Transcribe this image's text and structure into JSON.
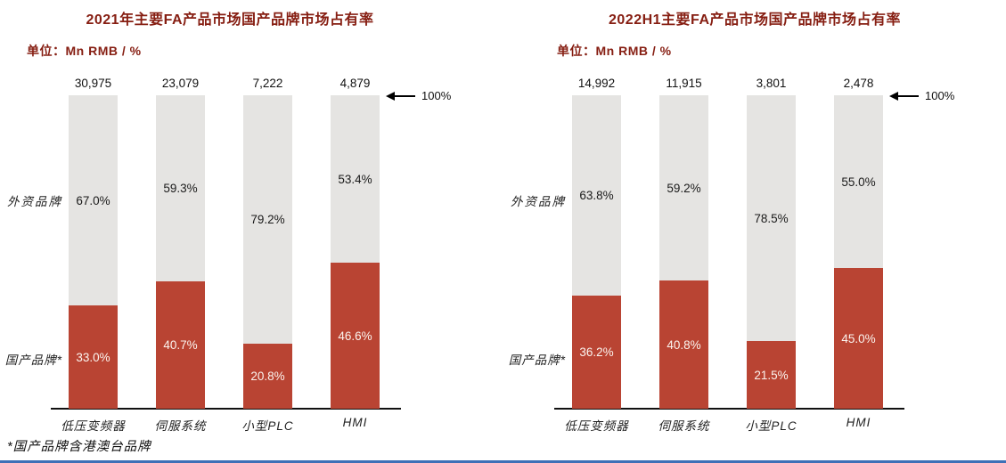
{
  "page": {
    "footnote": "*国产品牌含港澳台品牌"
  },
  "colors": {
    "domestic_bar": "#B94433",
    "foreign_bar": "#E5E4E2",
    "heading": "#861E12",
    "text_dark": "#1A1A1A",
    "text_on_red": "#FBF4EF",
    "bottom_rule": "#3E70B7"
  },
  "chart_data": [
    {
      "type": "bar",
      "subtype": "100%-stacked-column",
      "title": "2021年主要FA产品市场国产品牌市场占有率",
      "unit_label": "单位：Mn RMB / %",
      "axis_marker": "100%",
      "ylim": [
        0,
        100
      ],
      "legend_position": "left-of-plot",
      "categories": [
        "低压变频器",
        "伺服系统",
        "小型PLC",
        "HMI"
      ],
      "totals_mn_rmb": [
        "30,975",
        "23,079",
        "7,222",
        "4,879"
      ],
      "series": [
        {
          "name": "外资品牌",
          "values": [
            67.0,
            59.3,
            79.2,
            53.4
          ],
          "labels": [
            "67.0%",
            "59.3%",
            "79.2%",
            "53.4%"
          ]
        },
        {
          "name": "国产品牌*",
          "values": [
            33.0,
            40.7,
            20.8,
            46.6
          ],
          "labels": [
            "33.0%",
            "40.7%",
            "20.8%",
            "46.6%"
          ]
        }
      ]
    },
    {
      "type": "bar",
      "subtype": "100%-stacked-column",
      "title": "2022H1主要FA产品市场国产品牌市场占有率",
      "unit_label": "单位：Mn RMB / %",
      "axis_marker": "100%",
      "ylim": [
        0,
        100
      ],
      "legend_position": "left-of-plot",
      "categories": [
        "低压变频器",
        "伺服系统",
        "小型PLC",
        "HMI"
      ],
      "totals_mn_rmb": [
        "14,992",
        "11,915",
        "3,801",
        "2,478"
      ],
      "series": [
        {
          "name": "外资品牌",
          "values": [
            63.8,
            59.2,
            78.5,
            55.0
          ],
          "labels": [
            "63.8%",
            "59.2%",
            "78.5%",
            "55.0%"
          ]
        },
        {
          "name": "国产品牌*",
          "values": [
            36.2,
            40.8,
            21.5,
            45.0
          ],
          "labels": [
            "36.2%",
            "40.8%",
            "21.5%",
            "45.0%"
          ]
        }
      ]
    }
  ]
}
